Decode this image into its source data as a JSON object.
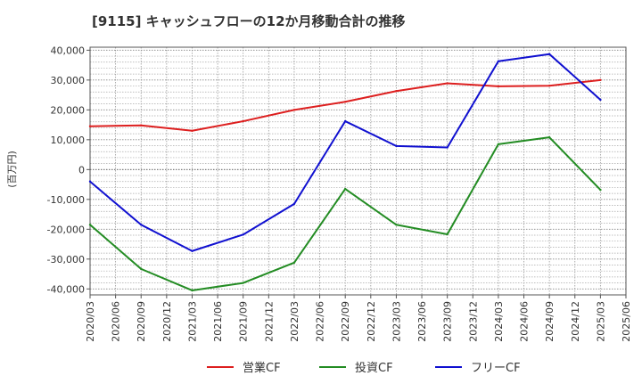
{
  "chart_data": {
    "type": "line",
    "title": "[9115]  キャッシュフローの12か月移動合計の推移",
    "ylabel": "(百万円)",
    "xlabel": "",
    "ylim": [
      -42000,
      41000
    ],
    "yticks": [
      40000,
      30000,
      20000,
      10000,
      0,
      -10000,
      -20000,
      -30000,
      -40000
    ],
    "ytick_labels": [
      "40,000",
      "30,000",
      "20,000",
      "10,000",
      "0",
      "-10,000",
      "-20,000",
      "-30,000",
      "-40,000"
    ],
    "x": [
      "2020/03",
      "2020/06",
      "2020/09",
      "2020/12",
      "2021/03",
      "2021/06",
      "2021/09",
      "2021/12",
      "2022/03",
      "2022/06",
      "2022/09",
      "2022/12",
      "2023/03",
      "2023/06",
      "2023/09",
      "2023/12",
      "2024/03",
      "2024/06",
      "2024/09",
      "2024/12",
      "2025/03",
      "2025/06"
    ],
    "grid": true,
    "legend_position": "bottom",
    "series": [
      {
        "name": "営業CF",
        "color": "#dd1f1f",
        "points": [
          {
            "x": "2020/03",
            "y": 14500
          },
          {
            "x": "2020/09",
            "y": 14800
          },
          {
            "x": "2021/03",
            "y": 13000
          },
          {
            "x": "2021/09",
            "y": 16200
          },
          {
            "x": "2022/03",
            "y": 20000
          },
          {
            "x": "2022/09",
            "y": 22700
          },
          {
            "x": "2023/03",
            "y": 26300
          },
          {
            "x": "2023/09",
            "y": 28900
          },
          {
            "x": "2024/03",
            "y": 27900
          },
          {
            "x": "2024/09",
            "y": 28100
          },
          {
            "x": "2025/03",
            "y": 30000
          }
        ]
      },
      {
        "name": "投資CF",
        "color": "#238c23",
        "points": [
          {
            "x": "2020/03",
            "y": -18500
          },
          {
            "x": "2020/09",
            "y": -33300
          },
          {
            "x": "2021/03",
            "y": -40500
          },
          {
            "x": "2021/09",
            "y": -38000
          },
          {
            "x": "2022/03",
            "y": -31200
          },
          {
            "x": "2022/09",
            "y": -6500
          },
          {
            "x": "2023/03",
            "y": -18500
          },
          {
            "x": "2023/09",
            "y": -21700
          },
          {
            "x": "2024/03",
            "y": 8500
          },
          {
            "x": "2024/09",
            "y": 10800
          },
          {
            "x": "2025/03",
            "y": -6800
          }
        ]
      },
      {
        "name": "フリーCF",
        "color": "#1010d0",
        "points": [
          {
            "x": "2020/03",
            "y": -4000
          },
          {
            "x": "2020/09",
            "y": -18500
          },
          {
            "x": "2021/03",
            "y": -27300
          },
          {
            "x": "2021/09",
            "y": -21800
          },
          {
            "x": "2022/03",
            "y": -11500
          },
          {
            "x": "2022/09",
            "y": 16200
          },
          {
            "x": "2023/03",
            "y": 7900
          },
          {
            "x": "2023/09",
            "y": 7400
          },
          {
            "x": "2024/03",
            "y": 36300
          },
          {
            "x": "2024/09",
            "y": 38700
          },
          {
            "x": "2025/03",
            "y": 23400
          }
        ]
      }
    ]
  }
}
